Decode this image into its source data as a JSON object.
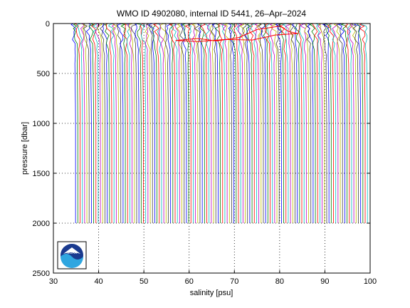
{
  "chart_data": {
    "type": "line",
    "title": "WMO ID 4902080, internal ID 5441, 26–Apr–2024",
    "xlabel": "salinity [psu]",
    "ylabel": "pressure [dbar]",
    "xlim": [
      30,
      100
    ],
    "ylim": [
      0,
      2500
    ],
    "y_reversed": true,
    "x_ticks": [
      30,
      40,
      50,
      60,
      70,
      80,
      90,
      100
    ],
    "y_ticks": [
      0,
      500,
      1000,
      1500,
      2000,
      2500
    ],
    "x_tick_labels": [
      "30",
      "40",
      "50",
      "60",
      "70",
      "80",
      "90",
      "100"
    ],
    "y_tick_labels": [
      "0",
      "500",
      "1000",
      "1500",
      "2000",
      "2500"
    ],
    "grid": "dotted",
    "profile_count": 130,
    "profile_offset_step": 0.5,
    "first_profile_salinity_surface": 34.2,
    "first_profile_salinity_deep": 34.9,
    "max_pressure": 2000,
    "highlighted_profile": {
      "color": "#ff0000",
      "points": [
        {
          "salinity": 57.0,
          "pressure": 170
        },
        {
          "salinity": 62.0,
          "pressure": 150
        },
        {
          "salinity": 66.0,
          "pressure": 175
        },
        {
          "salinity": 71.0,
          "pressure": 140
        },
        {
          "salinity": 75.0,
          "pressure": 60
        },
        {
          "salinity": 78.0,
          "pressure": 40
        },
        {
          "salinity": 80.0,
          "pressure": 25
        },
        {
          "salinity": 82.0,
          "pressure": 80
        },
        {
          "salinity": 84.0,
          "pressure": 100
        },
        {
          "salinity": 79.0,
          "pressure": 115
        },
        {
          "salinity": 74.0,
          "pressure": 165
        },
        {
          "salinity": 68.0,
          "pressure": 160
        },
        {
          "salinity": 62.0,
          "pressure": 180
        },
        {
          "salinity": 57.0,
          "pressure": 170
        }
      ]
    },
    "series_colors": [
      "#0000ff",
      "#008000",
      "#ff0000",
      "#00bfbf",
      "#bf00bf",
      "#bfbf00",
      "#404040"
    ],
    "logo": "noaa-logo"
  }
}
